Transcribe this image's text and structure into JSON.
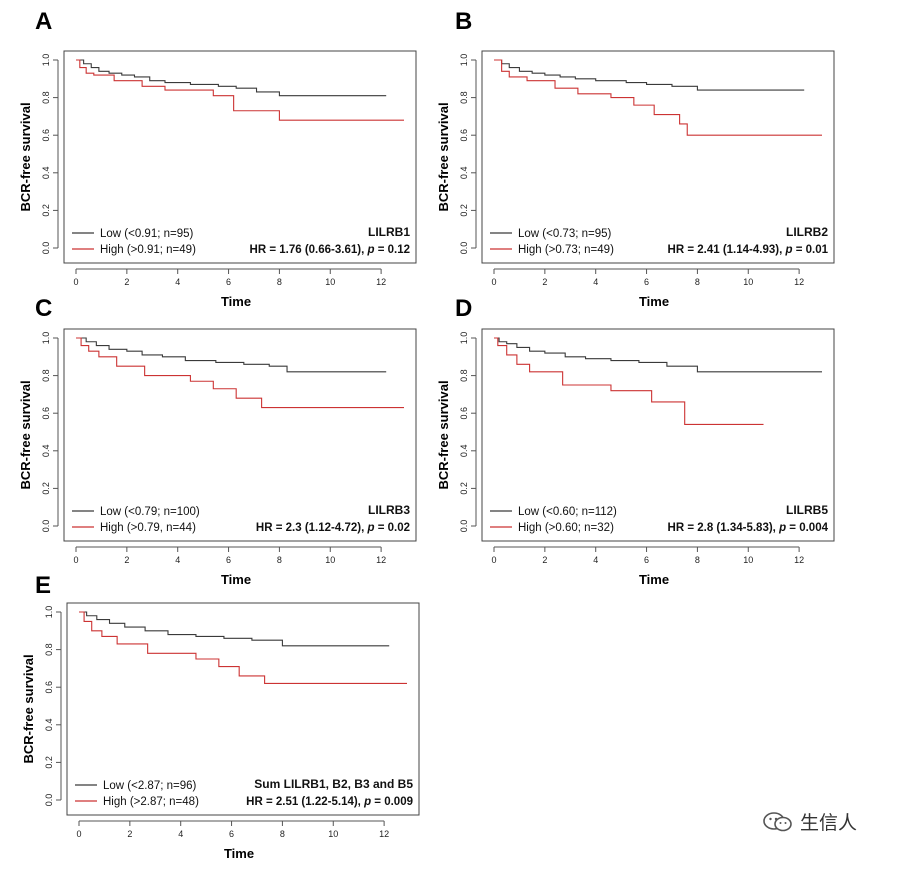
{
  "colors": {
    "low": "#3a3a3a",
    "high": "#cc3333",
    "axis": "#555555"
  },
  "watermark": {
    "text": "生信人",
    "icon": "wechat-icon"
  },
  "chart_data": [
    {
      "panel": "A",
      "type": "line",
      "xlabel": "Time",
      "ylabel": "BCR-free survival",
      "xlim": [
        0,
        12.9
      ],
      "ylim": [
        0,
        1.0
      ],
      "xticks": [
        "0",
        "2",
        "4",
        "6",
        "8",
        "10",
        "12"
      ],
      "yticks": [
        "0.0",
        "0.2",
        "0.4",
        "0.6",
        "0.8",
        "1.0"
      ],
      "annotation_title": "LILRB1",
      "annotation_hr": "HR = 1.76 (0.66-3.61), p = 0.12",
      "series": [
        {
          "name": "Low (<0.91; n=95)",
          "key": "low",
          "x": [
            0,
            0.3,
            0.6,
            0.9,
            1.3,
            1.8,
            2.3,
            2.9,
            3.5,
            4.5,
            5.6,
            6.3,
            7.1,
            8.0,
            12.2
          ],
          "y": [
            1.0,
            0.98,
            0.96,
            0.94,
            0.93,
            0.92,
            0.91,
            0.89,
            0.88,
            0.87,
            0.86,
            0.85,
            0.83,
            0.81,
            0.81
          ]
        },
        {
          "name": "High (>0.91; n=49)",
          "key": "high",
          "x": [
            0,
            0.15,
            0.4,
            0.7,
            1.5,
            2.6,
            3.5,
            5.4,
            6.2,
            8.0,
            12.9
          ],
          "y": [
            1.0,
            0.96,
            0.93,
            0.92,
            0.89,
            0.86,
            0.84,
            0.81,
            0.73,
            0.68,
            0.68
          ]
        }
      ]
    },
    {
      "panel": "B",
      "type": "line",
      "xlabel": "Time",
      "ylabel": "BCR-free survival",
      "xlim": [
        0,
        12.9
      ],
      "ylim": [
        0,
        1.0
      ],
      "xticks": [
        "0",
        "2",
        "4",
        "6",
        "8",
        "10",
        "12"
      ],
      "yticks": [
        "0.0",
        "0.2",
        "0.4",
        "0.6",
        "0.8",
        "1.0"
      ],
      "annotation_title": "LILRB2",
      "annotation_hr": "HR = 2.41 (1.14-4.93), p = 0.01",
      "series": [
        {
          "name": "Low (<0.73; n=95)",
          "key": "low",
          "x": [
            0,
            0.3,
            0.6,
            1.0,
            1.5,
            2.0,
            2.6,
            3.2,
            4.0,
            5.2,
            6.0,
            7.0,
            8.0,
            12.2
          ],
          "y": [
            1.0,
            0.98,
            0.96,
            0.94,
            0.93,
            0.92,
            0.91,
            0.9,
            0.89,
            0.88,
            0.87,
            0.86,
            0.84,
            0.84
          ]
        },
        {
          "name": "High (>0.73; n=49)",
          "key": "high",
          "x": [
            0,
            0.3,
            0.6,
            1.3,
            2.4,
            3.3,
            4.6,
            5.5,
            6.3,
            7.3,
            7.6,
            12.9
          ],
          "y": [
            1.0,
            0.94,
            0.91,
            0.89,
            0.85,
            0.82,
            0.8,
            0.76,
            0.71,
            0.66,
            0.6,
            0.6
          ]
        }
      ]
    },
    {
      "panel": "C",
      "type": "line",
      "xlabel": "Time",
      "ylabel": "BCR-free survival",
      "xlim": [
        0,
        12.9
      ],
      "ylim": [
        0,
        1.0
      ],
      "xticks": [
        "0",
        "2",
        "4",
        "6",
        "8",
        "10",
        "12"
      ],
      "yticks": [
        "0.0",
        "0.2",
        "0.4",
        "0.6",
        "0.8",
        "1.0"
      ],
      "annotation_title": "LILRB3",
      "annotation_hr": "HR = 2.3 (1.12-4.72), p = 0.02",
      "series": [
        {
          "name": "Low (<0.79; n=100)",
          "key": "low",
          "x": [
            0,
            0.4,
            0.8,
            1.3,
            2.0,
            2.6,
            3.4,
            4.3,
            5.5,
            6.6,
            7.6,
            8.3,
            12.2
          ],
          "y": [
            1.0,
            0.98,
            0.96,
            0.94,
            0.93,
            0.91,
            0.9,
            0.88,
            0.87,
            0.86,
            0.85,
            0.82,
            0.82
          ]
        },
        {
          "name": "High (>0.79, n=44)",
          "key": "high",
          "x": [
            0,
            0.2,
            0.5,
            0.9,
            1.6,
            2.7,
            4.5,
            5.4,
            6.3,
            7.3,
            12.9
          ],
          "y": [
            1.0,
            0.96,
            0.93,
            0.9,
            0.85,
            0.8,
            0.77,
            0.73,
            0.68,
            0.63,
            0.63
          ]
        }
      ]
    },
    {
      "panel": "D",
      "type": "line",
      "xlabel": "Time",
      "ylabel": "BCR-free survival",
      "xlim": [
        0,
        12.9
      ],
      "ylim": [
        0,
        1.0
      ],
      "xticks": [
        "0",
        "2",
        "4",
        "6",
        "8",
        "10",
        "12"
      ],
      "yticks": [
        "0.0",
        "0.2",
        "0.4",
        "0.6",
        "0.8",
        "1.0"
      ],
      "annotation_title": "LILRB5",
      "annotation_hr": "HR = 2.8 (1.34-5.83), p = 0.004",
      "series": [
        {
          "name": "Low (<0.60; n=112)",
          "key": "low",
          "x": [
            0,
            0.2,
            0.5,
            0.9,
            1.4,
            2.0,
            2.8,
            3.6,
            4.6,
            5.7,
            6.8,
            8.0,
            12.9
          ],
          "y": [
            1.0,
            0.98,
            0.97,
            0.95,
            0.93,
            0.92,
            0.9,
            0.89,
            0.88,
            0.87,
            0.85,
            0.82,
            0.82
          ]
        },
        {
          "name": "High (>0.60; n=32)",
          "key": "high",
          "x": [
            0,
            0.15,
            0.5,
            0.9,
            1.4,
            2.7,
            4.6,
            6.2,
            7.5,
            10.6
          ],
          "y": [
            1.0,
            0.96,
            0.91,
            0.86,
            0.82,
            0.75,
            0.72,
            0.66,
            0.54,
            0.54
          ]
        }
      ]
    },
    {
      "panel": "E",
      "type": "line",
      "xlabel": "Time",
      "ylabel": "BCR-free survival",
      "xlim": [
        0,
        12.9
      ],
      "ylim": [
        0,
        1.0
      ],
      "xticks": [
        "0",
        "2",
        "4",
        "6",
        "8",
        "10",
        "12"
      ],
      "yticks": [
        "0.0",
        "0.2",
        "0.4",
        "0.6",
        "0.8",
        "1.0"
      ],
      "annotation_title": "Sum LILRB1, B2, B3 and B5",
      "annotation_hr": "HR = 2.51 (1.22-5.14), p = 0.009",
      "series": [
        {
          "name": "Low (<2.87; n=96)",
          "key": "low",
          "x": [
            0,
            0.3,
            0.7,
            1.2,
            1.8,
            2.6,
            3.5,
            4.6,
            5.7,
            6.8,
            8.0,
            12.2
          ],
          "y": [
            1.0,
            0.98,
            0.96,
            0.94,
            0.92,
            0.9,
            0.88,
            0.87,
            0.86,
            0.85,
            0.82,
            0.82
          ]
        },
        {
          "name": "High (>2.87; n=48)",
          "key": "high",
          "x": [
            0,
            0.2,
            0.5,
            0.9,
            1.5,
            2.7,
            4.6,
            5.5,
            6.3,
            7.3,
            12.9
          ],
          "y": [
            1.0,
            0.95,
            0.9,
            0.87,
            0.83,
            0.78,
            0.75,
            0.71,
            0.66,
            0.62,
            0.62
          ]
        }
      ]
    }
  ]
}
